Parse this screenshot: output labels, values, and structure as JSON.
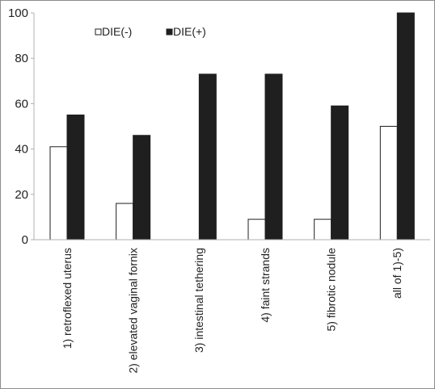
{
  "chart_data": {
    "type": "bar",
    "categories": [
      "1) retroflexed uterus",
      "2) elevated vaginal fornix",
      "3) intestinal tethering",
      "4) faint strands",
      "5) fibrotic nodule",
      "all of 1)-5)"
    ],
    "series": [
      {
        "name": "DIE(-)",
        "values": [
          41,
          16,
          0,
          9,
          9,
          50
        ],
        "color": "#ffffff"
      },
      {
        "name": "DIE(+)",
        "values": [
          55,
          46,
          73,
          73,
          59,
          100
        ],
        "color": "#1f1f1f"
      }
    ],
    "ylim": [
      0,
      100
    ],
    "yticks": [
      0,
      20,
      40,
      60,
      80,
      100
    ],
    "grid": false,
    "legend_position": "top-left",
    "title": "",
    "xlabel": "",
    "ylabel": ""
  }
}
